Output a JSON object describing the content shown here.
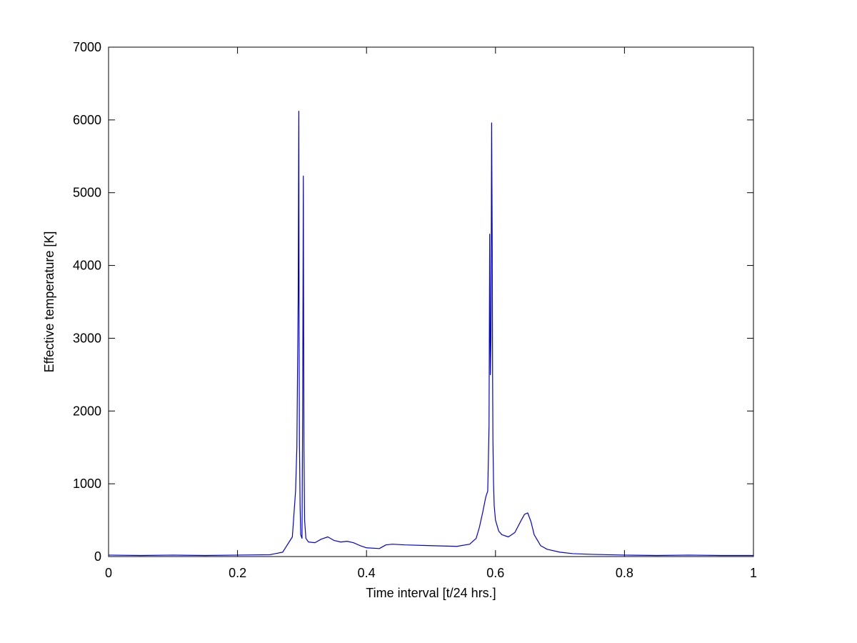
{
  "chart_data": {
    "type": "line",
    "title": "",
    "xlabel": "Time interval [t/24 hrs.]",
    "ylabel": "Effective temperature [K]",
    "xlim": [
      0,
      1
    ],
    "ylim": [
      0,
      7000
    ],
    "x_ticks": [
      0,
      0.2,
      0.4,
      0.6,
      0.8,
      1
    ],
    "x_tick_labels": [
      "0",
      "0.2",
      "0.4",
      "0.6",
      "0.8",
      "1"
    ],
    "y_ticks": [
      0,
      1000,
      2000,
      3000,
      4000,
      5000,
      6000,
      7000
    ],
    "y_tick_labels": [
      "0",
      "1000",
      "2000",
      "3000",
      "4000",
      "5000",
      "6000",
      "7000"
    ],
    "grid": false,
    "legend": "none",
    "series": [
      {
        "color": "#0000dd",
        "x": [
          0,
          0.05,
          0.1,
          0.15,
          0.2,
          0.25,
          0.27,
          0.28,
          0.285,
          0.29,
          0.292,
          0.294,
          0.295,
          0.2955,
          0.296,
          0.297,
          0.298,
          0.3,
          0.301,
          0.302,
          0.303,
          0.304,
          0.306,
          0.31,
          0.32,
          0.33,
          0.34,
          0.35,
          0.36,
          0.37,
          0.38,
          0.39,
          0.4,
          0.42,
          0.43,
          0.44,
          0.46,
          0.5,
          0.54,
          0.56,
          0.57,
          0.575,
          0.58,
          0.585,
          0.588,
          0.59,
          0.591,
          0.592,
          0.593,
          0.594,
          0.595,
          0.5955,
          0.596,
          0.597,
          0.598,
          0.6,
          0.605,
          0.61,
          0.62,
          0.63,
          0.64,
          0.645,
          0.65,
          0.655,
          0.66,
          0.67,
          0.68,
          0.7,
          0.72,
          0.75,
          0.8,
          0.85,
          0.9,
          0.95,
          1
        ],
        "y": [
          20,
          15,
          20,
          15,
          20,
          25,
          60,
          200,
          270,
          900,
          1500,
          3500,
          6120,
          3000,
          1600,
          700,
          300,
          250,
          2000,
          5230,
          1500,
          500,
          250,
          200,
          190,
          240,
          270,
          220,
          200,
          210,
          190,
          150,
          120,
          110,
          160,
          170,
          160,
          150,
          140,
          170,
          250,
          400,
          600,
          820,
          900,
          1800,
          4430,
          2500,
          3000,
          5960,
          4200,
          2500,
          1600,
          1000,
          700,
          500,
          350,
          300,
          270,
          330,
          500,
          580,
          600,
          480,
          300,
          150,
          100,
          60,
          40,
          30,
          20,
          15,
          20,
          15,
          15
        ]
      }
    ]
  }
}
